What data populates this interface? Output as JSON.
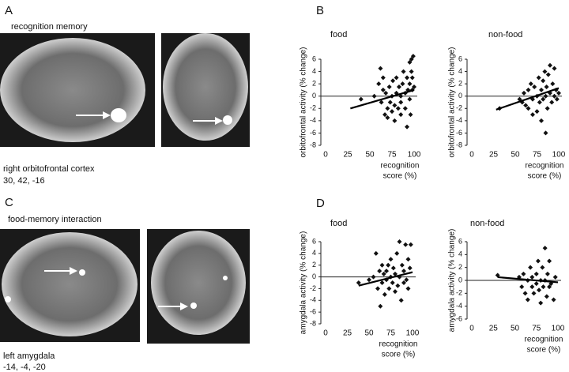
{
  "panels": {
    "A": {
      "label": "A",
      "title": "recognition memory",
      "region": "right orbitofrontal cortex",
      "coords": "30, 42, -16"
    },
    "B": {
      "label": "B"
    },
    "C": {
      "label": "C",
      "title": "food-memory interaction",
      "region": "left amygdala",
      "coords": "-14, -4, -20"
    },
    "D": {
      "label": "D"
    }
  },
  "chart_data": [
    {
      "type": "scatter",
      "title": "food",
      "ylabel": "orbitofrontal activity (% change)",
      "xlabel": [
        "recognition",
        "score (%)"
      ],
      "xlim": [
        0,
        100
      ],
      "ylim": [
        -8,
        6
      ],
      "xticks": [
        0,
        25,
        50,
        75,
        100
      ],
      "yticks": [
        6,
        4,
        2,
        0,
        -2,
        -4,
        -6,
        -8
      ],
      "color": "#111111",
      "series": [
        {
          "x": [
            40,
            55,
            60,
            62,
            63,
            65,
            65,
            67,
            68,
            70,
            70,
            72,
            73,
            75,
            75,
            76,
            78,
            78,
            80,
            80,
            82,
            83,
            85,
            85,
            85,
            87,
            88,
            90,
            90,
            92,
            92,
            93,
            95,
            95,
            95,
            96,
            97,
            97,
            98,
            98,
            99,
            100
          ],
          "values": [
            -0.5,
            0,
            2,
            4.5,
            -1,
            3,
            1,
            -3,
            0.5,
            -2,
            -3.5,
            1.5,
            -1,
            -2.5,
            0,
            2.5,
            -1.5,
            -4,
            0.5,
            3,
            -2,
            1.5,
            -3,
            -1,
            0,
            2,
            4,
            -2,
            0.5,
            3,
            -5,
            1,
            5.5,
            -0.5,
            2,
            -3,
            6,
            4,
            1,
            3,
            6.5,
            1.5
          ]
        }
      ],
      "trend": {
        "x": [
          28,
          100
        ],
        "values": [
          -2,
          1
        ]
      }
    },
    {
      "type": "scatter",
      "title": "non-food",
      "ylabel": "orbitofrontal activity (% change)",
      "xlabel": [
        "recognition",
        "score (%)"
      ],
      "xlim": [
        0,
        100
      ],
      "ylim": [
        -8,
        6
      ],
      "xticks": [
        0,
        25,
        50,
        75,
        100
      ],
      "yticks": [
        6,
        4,
        2,
        0,
        -2,
        -4,
        -6,
        -8
      ],
      "color": "#111111",
      "series": [
        {
          "x": [
            32,
            55,
            58,
            60,
            62,
            65,
            65,
            68,
            70,
            70,
            72,
            75,
            75,
            77,
            78,
            80,
            80,
            82,
            82,
            84,
            85,
            85,
            86,
            87,
            88,
            90,
            90,
            92,
            93,
            95,
            95,
            97,
            98,
            100
          ],
          "values": [
            -2,
            -0.5,
            -1,
            0.5,
            -1.5,
            1,
            -2,
            2,
            -0.5,
            -3,
            1.5,
            0,
            -2.5,
            3,
            -1,
            1,
            -4,
            2.5,
            -0.5,
            4,
            -6,
            0,
            1.5,
            -2,
            3.5,
            0.5,
            5,
            -1,
            2,
            0,
            4.5,
            1,
            -0.5,
            0.5
          ]
        }
      ],
      "trend": {
        "x": [
          28,
          100
        ],
        "values": [
          -2.2,
          1.3
        ]
      }
    },
    {
      "type": "scatter",
      "title": "food",
      "ylabel": "amygdala activity (% change)",
      "xlabel": [
        "recognition",
        "score (%)"
      ],
      "xlim": [
        0,
        100
      ],
      "ylim": [
        -8,
        6
      ],
      "xticks": [
        0,
        25,
        50,
        75,
        100
      ],
      "yticks": [
        6,
        4,
        2,
        0,
        -2,
        -4,
        -6,
        -8
      ],
      "color": "#111111",
      "series": [
        {
          "x": [
            38,
            50,
            55,
            58,
            60,
            62,
            63,
            65,
            65,
            67,
            68,
            70,
            70,
            72,
            73,
            75,
            75,
            77,
            78,
            80,
            80,
            82,
            83,
            85,
            85,
            87,
            88,
            90,
            90,
            92,
            93,
            95,
            95,
            97,
            98
          ],
          "values": [
            -1,
            -0.5,
            0,
            4,
            -2,
            1,
            -5,
            2,
            -1,
            0.5,
            -3,
            1,
            -0.5,
            2,
            -2,
            0,
            3,
            -1,
            1.5,
            -2.5,
            0.5,
            4,
            -1.5,
            6,
            0,
            -4,
            2,
            1,
            -1,
            5.5,
            -0.5,
            3,
            -2,
            1.5,
            5.5
          ]
        }
      ],
      "trend": {
        "x": [
          38,
          100
        ],
        "values": [
          -1.5,
          0.8
        ]
      }
    },
    {
      "type": "scatter",
      "title": "non-food",
      "ylabel": "amygdala activity (% change)",
      "xlabel": [
        "recognition",
        "score (%)"
      ],
      "xlim": [
        0,
        100
      ],
      "ylim": [
        -6,
        6
      ],
      "xticks": [
        0,
        25,
        50,
        75,
        100
      ],
      "yticks": [
        6,
        4,
        2,
        0,
        -2,
        -4,
        -6
      ],
      "color": "#111111",
      "series": [
        {
          "x": [
            30,
            55,
            58,
            60,
            62,
            65,
            65,
            68,
            70,
            70,
            72,
            75,
            75,
            77,
            78,
            80,
            80,
            82,
            83,
            85,
            85,
            87,
            88,
            90,
            90,
            92,
            95,
            97
          ],
          "values": [
            0.8,
            0.5,
            -1,
            1,
            -2,
            0,
            -3,
            2,
            -1,
            0.5,
            -2,
            1,
            -0.5,
            3,
            -1.5,
            0,
            -3.5,
            2,
            -1,
            5,
            0,
            -2.5,
            1,
            -1,
            3,
            -0.5,
            -3,
            0.5
          ]
        }
      ],
      "trend": {
        "x": [
          30,
          100
        ],
        "values": [
          0.5,
          -0.3
        ]
      }
    }
  ]
}
